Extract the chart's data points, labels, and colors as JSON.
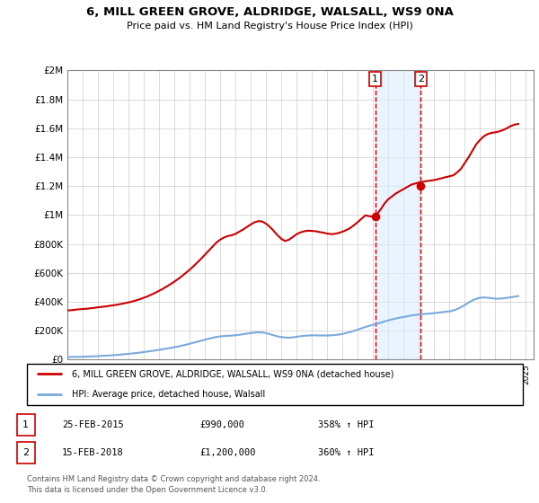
{
  "title": "6, MILL GREEN GROVE, ALDRIDGE, WALSALL, WS9 0NA",
  "subtitle": "Price paid vs. HM Land Registry's House Price Index (HPI)",
  "ylim": [
    0,
    2000000
  ],
  "yticks": [
    0,
    200000,
    400000,
    600000,
    800000,
    1000000,
    1200000,
    1400000,
    1600000,
    1800000,
    2000000
  ],
  "ytick_labels": [
    "£0",
    "£200K",
    "£400K",
    "£600K",
    "£800K",
    "£1M",
    "£1.2M",
    "£1.4M",
    "£1.6M",
    "£1.8M",
    "£2M"
  ],
  "xlim_start": 1995.0,
  "xlim_end": 2025.5,
  "transaction1_date": 2015.14,
  "transaction1_price": 990000,
  "transaction2_date": 2018.12,
  "transaction2_price": 1200000,
  "property_line_color": "#cc0000",
  "hpi_line_color": "#7aaadd",
  "shade_color": "#ddeeff",
  "shade_alpha": 0.6,
  "vline_color": "#cc0000",
  "legend_property": "6, MILL GREEN GROVE, ALDRIDGE, WALSALL, WS9 0NA (detached house)",
  "legend_hpi": "HPI: Average price, detached house, Walsall",
  "table_row1": [
    "1",
    "25-FEB-2015",
    "£990,000",
    "358% ↑ HPI"
  ],
  "table_row2": [
    "2",
    "15-FEB-2018",
    "£1,200,000",
    "360% ↑ HPI"
  ],
  "footnote": "Contains HM Land Registry data © Crown copyright and database right 2024.\nThis data is licensed under the Open Government Licence v3.0.",
  "property_data_x": [
    1995.0,
    1995.25,
    1995.5,
    1995.75,
    1996.0,
    1996.25,
    1996.5,
    1996.75,
    1997.0,
    1997.25,
    1997.5,
    1997.75,
    1998.0,
    1998.25,
    1998.5,
    1998.75,
    1999.0,
    1999.25,
    1999.5,
    1999.75,
    2000.0,
    2000.25,
    2000.5,
    2000.75,
    2001.0,
    2001.25,
    2001.5,
    2001.75,
    2002.0,
    2002.25,
    2002.5,
    2002.75,
    2003.0,
    2003.25,
    2003.5,
    2003.75,
    2004.0,
    2004.25,
    2004.5,
    2004.75,
    2005.0,
    2005.25,
    2005.5,
    2005.75,
    2006.0,
    2006.25,
    2006.5,
    2006.75,
    2007.0,
    2007.25,
    2007.5,
    2007.75,
    2008.0,
    2008.25,
    2008.5,
    2008.75,
    2009.0,
    2009.25,
    2009.5,
    2009.75,
    2010.0,
    2010.25,
    2010.5,
    2010.75,
    2011.0,
    2011.25,
    2011.5,
    2011.75,
    2012.0,
    2012.25,
    2012.5,
    2012.75,
    2013.0,
    2013.25,
    2013.5,
    2013.75,
    2014.0,
    2014.25,
    2014.5,
    2014.75,
    2015.0,
    2015.25,
    2015.5,
    2015.75,
    2016.0,
    2016.25,
    2016.5,
    2016.75,
    2017.0,
    2017.25,
    2017.5,
    2017.75,
    2018.0,
    2018.25,
    2018.5,
    2018.75,
    2019.0,
    2019.25,
    2019.5,
    2019.75,
    2020.0,
    2020.25,
    2020.5,
    2020.75,
    2021.0,
    2021.25,
    2021.5,
    2021.75,
    2022.0,
    2022.25,
    2022.5,
    2022.75,
    2023.0,
    2023.25,
    2023.5,
    2023.75,
    2024.0,
    2024.25,
    2024.5
  ],
  "property_data_y": [
    340000,
    342000,
    345000,
    348000,
    350000,
    352000,
    355000,
    358000,
    362000,
    365000,
    368000,
    372000,
    376000,
    380000,
    385000,
    390000,
    396000,
    402000,
    410000,
    418000,
    428000,
    438000,
    450000,
    462000,
    476000,
    490000,
    506000,
    522000,
    540000,
    558000,
    578000,
    600000,
    622000,
    646000,
    672000,
    698000,
    726000,
    754000,
    782000,
    810000,
    830000,
    845000,
    855000,
    860000,
    870000,
    885000,
    900000,
    918000,
    935000,
    950000,
    958000,
    955000,
    940000,
    918000,
    890000,
    860000,
    835000,
    820000,
    830000,
    848000,
    868000,
    880000,
    888000,
    892000,
    890000,
    888000,
    882000,
    878000,
    872000,
    868000,
    870000,
    876000,
    885000,
    896000,
    910000,
    930000,
    952000,
    975000,
    998000,
    992000,
    988000,
    1005000,
    1040000,
    1080000,
    1110000,
    1130000,
    1150000,
    1165000,
    1180000,
    1195000,
    1210000,
    1218000,
    1225000,
    1230000,
    1235000,
    1238000,
    1242000,
    1248000,
    1255000,
    1262000,
    1268000,
    1275000,
    1295000,
    1320000,
    1360000,
    1400000,
    1445000,
    1490000,
    1520000,
    1545000,
    1560000,
    1568000,
    1572000,
    1578000,
    1588000,
    1600000,
    1615000,
    1625000,
    1630000
  ],
  "hpi_data_x": [
    1995.0,
    1995.25,
    1995.5,
    1995.75,
    1996.0,
    1996.25,
    1996.5,
    1996.75,
    1997.0,
    1997.25,
    1997.5,
    1997.75,
    1998.0,
    1998.25,
    1998.5,
    1998.75,
    1999.0,
    1999.25,
    1999.5,
    1999.75,
    2000.0,
    2000.25,
    2000.5,
    2000.75,
    2001.0,
    2001.25,
    2001.5,
    2001.75,
    2002.0,
    2002.25,
    2002.5,
    2002.75,
    2003.0,
    2003.25,
    2003.5,
    2003.75,
    2004.0,
    2004.25,
    2004.5,
    2004.75,
    2005.0,
    2005.25,
    2005.5,
    2005.75,
    2006.0,
    2006.25,
    2006.5,
    2006.75,
    2007.0,
    2007.25,
    2007.5,
    2007.75,
    2008.0,
    2008.25,
    2008.5,
    2008.75,
    2009.0,
    2009.25,
    2009.5,
    2009.75,
    2010.0,
    2010.25,
    2010.5,
    2010.75,
    2011.0,
    2011.25,
    2011.5,
    2011.75,
    2012.0,
    2012.25,
    2012.5,
    2012.75,
    2013.0,
    2013.25,
    2013.5,
    2013.75,
    2014.0,
    2014.25,
    2014.5,
    2014.75,
    2015.0,
    2015.25,
    2015.5,
    2015.75,
    2016.0,
    2016.25,
    2016.5,
    2016.75,
    2017.0,
    2017.25,
    2017.5,
    2017.75,
    2018.0,
    2018.25,
    2018.5,
    2018.75,
    2019.0,
    2019.25,
    2019.5,
    2019.75,
    2020.0,
    2020.25,
    2020.5,
    2020.75,
    2021.0,
    2021.25,
    2021.5,
    2021.75,
    2022.0,
    2022.25,
    2022.5,
    2022.75,
    2023.0,
    2023.25,
    2023.5,
    2023.75,
    2024.0,
    2024.25,
    2024.5
  ],
  "hpi_data_y": [
    18000,
    18500,
    19000,
    19500,
    20000,
    21000,
    22000,
    23000,
    24500,
    26000,
    27500,
    29000,
    31000,
    33000,
    35000,
    37500,
    40000,
    43000,
    46000,
    49000,
    52500,
    56000,
    60000,
    64000,
    68000,
    72000,
    76500,
    81000,
    86000,
    91000,
    97000,
    103000,
    110000,
    117000,
    124000,
    131000,
    138000,
    145000,
    151000,
    157000,
    161000,
    163000,
    165000,
    166000,
    169000,
    172000,
    176000,
    180000,
    184000,
    187000,
    189000,
    188000,
    183000,
    176000,
    168000,
    161000,
    156000,
    153000,
    152000,
    154000,
    158000,
    162000,
    165000,
    167000,
    168000,
    168000,
    167000,
    167000,
    167000,
    168000,
    170000,
    173000,
    178000,
    184000,
    191000,
    199000,
    208000,
    217000,
    226000,
    234000,
    241000,
    248000,
    256000,
    264000,
    272000,
    279000,
    285000,
    290000,
    295000,
    300000,
    305000,
    309000,
    312000,
    315000,
    317000,
    319000,
    322000,
    325000,
    328000,
    331000,
    334000,
    340000,
    350000,
    363000,
    378000,
    395000,
    410000,
    421000,
    428000,
    430000,
    428000,
    425000,
    422000,
    422000,
    424000,
    427000,
    431000,
    436000,
    440000
  ]
}
